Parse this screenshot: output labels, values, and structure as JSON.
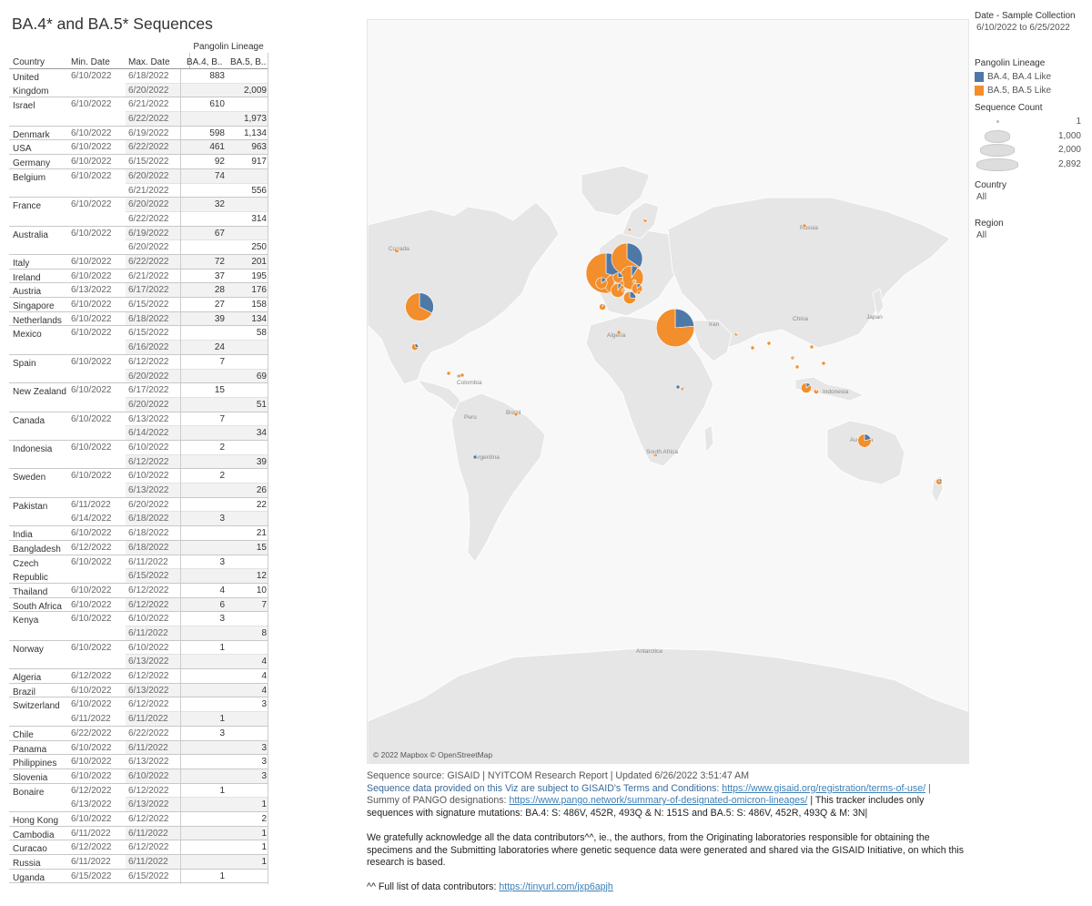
{
  "title": "BA.4* and BA.5* Sequences",
  "table": {
    "lineage_header": "Pangolin Lineage",
    "headers": {
      "country": "Country",
      "min_date": "Min. Date",
      "max_date": "Max. Date",
      "ba4": "BA.4, B..",
      "ba5": "BA.5, B.."
    },
    "groups": [
      {
        "country": "United Kingdom",
        "rows": [
          {
            "min": "6/10/2022",
            "max": "6/18/2022",
            "ba4": "883",
            "ba5": ""
          },
          {
            "min": "",
            "max": "6/20/2022",
            "ba4": "",
            "ba5": "2,009"
          }
        ]
      },
      {
        "country": "Israel",
        "rows": [
          {
            "min": "6/10/2022",
            "max": "6/21/2022",
            "ba4": "610",
            "ba5": ""
          },
          {
            "min": "",
            "max": "6/22/2022",
            "ba4": "",
            "ba5": "1,973"
          }
        ]
      },
      {
        "country": "Denmark",
        "rows": [
          {
            "min": "6/10/2022",
            "max": "6/19/2022",
            "ba4": "598",
            "ba5": "1,134"
          }
        ]
      },
      {
        "country": "USA",
        "rows": [
          {
            "min": "6/10/2022",
            "max": "6/22/2022",
            "ba4": "461",
            "ba5": "963"
          }
        ]
      },
      {
        "country": "Germany",
        "rows": [
          {
            "min": "6/10/2022",
            "max": "6/15/2022",
            "ba4": "92",
            "ba5": "917"
          }
        ]
      },
      {
        "country": "Belgium",
        "rows": [
          {
            "min": "6/10/2022",
            "max": "6/20/2022",
            "ba4": "74",
            "ba5": ""
          },
          {
            "min": "",
            "max": "6/21/2022",
            "ba4": "",
            "ba5": "556"
          }
        ]
      },
      {
        "country": "France",
        "rows": [
          {
            "min": "6/10/2022",
            "max": "6/20/2022",
            "ba4": "32",
            "ba5": ""
          },
          {
            "min": "",
            "max": "6/22/2022",
            "ba4": "",
            "ba5": "314"
          }
        ]
      },
      {
        "country": "Australia",
        "rows": [
          {
            "min": "6/10/2022",
            "max": "6/19/2022",
            "ba4": "67",
            "ba5": ""
          },
          {
            "min": "",
            "max": "6/20/2022",
            "ba4": "",
            "ba5": "250"
          }
        ]
      },
      {
        "country": "Italy",
        "rows": [
          {
            "min": "6/10/2022",
            "max": "6/22/2022",
            "ba4": "72",
            "ba5": "201"
          }
        ]
      },
      {
        "country": "Ireland",
        "rows": [
          {
            "min": "6/10/2022",
            "max": "6/21/2022",
            "ba4": "37",
            "ba5": "195"
          }
        ]
      },
      {
        "country": "Austria",
        "rows": [
          {
            "min": "6/13/2022",
            "max": "6/17/2022",
            "ba4": "28",
            "ba5": "176"
          }
        ]
      },
      {
        "country": "Singapore",
        "rows": [
          {
            "min": "6/10/2022",
            "max": "6/15/2022",
            "ba4": "27",
            "ba5": "158"
          }
        ]
      },
      {
        "country": "Netherlands",
        "rows": [
          {
            "min": "6/10/2022",
            "max": "6/18/2022",
            "ba4": "39",
            "ba5": "134"
          }
        ]
      },
      {
        "country": "Mexico",
        "rows": [
          {
            "min": "6/10/2022",
            "max": "6/15/2022",
            "ba4": "",
            "ba5": "58"
          },
          {
            "min": "",
            "max": "6/16/2022",
            "ba4": "24",
            "ba5": ""
          }
        ]
      },
      {
        "country": "Spain",
        "rows": [
          {
            "min": "6/10/2022",
            "max": "6/12/2022",
            "ba4": "7",
            "ba5": ""
          },
          {
            "min": "",
            "max": "6/20/2022",
            "ba4": "",
            "ba5": "69"
          }
        ]
      },
      {
        "country": "New Zealand",
        "rows": [
          {
            "min": "6/10/2022",
            "max": "6/17/2022",
            "ba4": "15",
            "ba5": ""
          },
          {
            "min": "",
            "max": "6/20/2022",
            "ba4": "",
            "ba5": "51"
          }
        ]
      },
      {
        "country": "Canada",
        "rows": [
          {
            "min": "6/10/2022",
            "max": "6/13/2022",
            "ba4": "7",
            "ba5": ""
          },
          {
            "min": "",
            "max": "6/14/2022",
            "ba4": "",
            "ba5": "34"
          }
        ]
      },
      {
        "country": "Indonesia",
        "rows": [
          {
            "min": "6/10/2022",
            "max": "6/10/2022",
            "ba4": "2",
            "ba5": ""
          },
          {
            "min": "",
            "max": "6/12/2022",
            "ba4": "",
            "ba5": "39"
          }
        ]
      },
      {
        "country": "Sweden",
        "rows": [
          {
            "min": "6/10/2022",
            "max": "6/10/2022",
            "ba4": "2",
            "ba5": ""
          },
          {
            "min": "",
            "max": "6/13/2022",
            "ba4": "",
            "ba5": "26"
          }
        ]
      },
      {
        "country": "Pakistan",
        "rows": [
          {
            "min": "6/11/2022",
            "max": "6/20/2022",
            "ba4": "",
            "ba5": "22"
          },
          {
            "min": "6/14/2022",
            "max": "6/18/2022",
            "ba4": "3",
            "ba5": ""
          }
        ]
      },
      {
        "country": "India",
        "rows": [
          {
            "min": "6/10/2022",
            "max": "6/18/2022",
            "ba4": "",
            "ba5": "21"
          }
        ]
      },
      {
        "country": "Bangladesh",
        "rows": [
          {
            "min": "6/12/2022",
            "max": "6/18/2022",
            "ba4": "",
            "ba5": "15"
          }
        ]
      },
      {
        "country": "Czech Republic",
        "rows": [
          {
            "min": "6/10/2022",
            "max": "6/11/2022",
            "ba4": "3",
            "ba5": ""
          },
          {
            "min": "",
            "max": "6/15/2022",
            "ba4": "",
            "ba5": "12"
          }
        ]
      },
      {
        "country": "Thailand",
        "rows": [
          {
            "min": "6/10/2022",
            "max": "6/12/2022",
            "ba4": "4",
            "ba5": "10"
          }
        ]
      },
      {
        "country": "South Africa",
        "rows": [
          {
            "min": "6/10/2022",
            "max": "6/12/2022",
            "ba4": "6",
            "ba5": "7"
          }
        ]
      },
      {
        "country": "Kenya",
        "rows": [
          {
            "min": "6/10/2022",
            "max": "6/10/2022",
            "ba4": "3",
            "ba5": ""
          },
          {
            "min": "",
            "max": "6/11/2022",
            "ba4": "",
            "ba5": "8"
          }
        ]
      },
      {
        "country": "Norway",
        "rows": [
          {
            "min": "6/10/2022",
            "max": "6/10/2022",
            "ba4": "1",
            "ba5": ""
          },
          {
            "min": "",
            "max": "6/13/2022",
            "ba4": "",
            "ba5": "4"
          }
        ]
      },
      {
        "country": "Algeria",
        "rows": [
          {
            "min": "6/12/2022",
            "max": "6/12/2022",
            "ba4": "",
            "ba5": "4"
          }
        ]
      },
      {
        "country": "Brazil",
        "rows": [
          {
            "min": "6/10/2022",
            "max": "6/13/2022",
            "ba4": "",
            "ba5": "4"
          }
        ]
      },
      {
        "country": "Switzerland",
        "rows": [
          {
            "min": "6/10/2022",
            "max": "6/12/2022",
            "ba4": "",
            "ba5": "3"
          },
          {
            "min": "6/11/2022",
            "max": "6/11/2022",
            "ba4": "1",
            "ba5": ""
          }
        ]
      },
      {
        "country": "Chile",
        "rows": [
          {
            "min": "6/22/2022",
            "max": "6/22/2022",
            "ba4": "3",
            "ba5": ""
          }
        ]
      },
      {
        "country": "Panama",
        "rows": [
          {
            "min": "6/10/2022",
            "max": "6/11/2022",
            "ba4": "",
            "ba5": "3"
          }
        ]
      },
      {
        "country": "Philippines",
        "rows": [
          {
            "min": "6/10/2022",
            "max": "6/13/2022",
            "ba4": "",
            "ba5": "3"
          }
        ]
      },
      {
        "country": "Slovenia",
        "rows": [
          {
            "min": "6/10/2022",
            "max": "6/10/2022",
            "ba4": "",
            "ba5": "3"
          }
        ]
      },
      {
        "country": "Bonaire",
        "rows": [
          {
            "min": "6/12/2022",
            "max": "6/12/2022",
            "ba4": "1",
            "ba5": ""
          },
          {
            "min": "6/13/2022",
            "max": "6/13/2022",
            "ba4": "",
            "ba5": "1"
          }
        ]
      },
      {
        "country": "Hong Kong",
        "rows": [
          {
            "min": "6/10/2022",
            "max": "6/12/2022",
            "ba4": "",
            "ba5": "2"
          }
        ]
      },
      {
        "country": "Cambodia",
        "rows": [
          {
            "min": "6/11/2022",
            "max": "6/11/2022",
            "ba4": "",
            "ba5": "1"
          }
        ]
      },
      {
        "country": "Curacao",
        "rows": [
          {
            "min": "6/12/2022",
            "max": "6/12/2022",
            "ba4": "",
            "ba5": "1"
          }
        ]
      },
      {
        "country": "Russia",
        "rows": [
          {
            "min": "6/11/2022",
            "max": "6/11/2022",
            "ba4": "",
            "ba5": "1"
          }
        ]
      },
      {
        "country": "Uganda",
        "rows": [
          {
            "min": "6/15/2022",
            "max": "6/15/2022",
            "ba4": "1",
            "ba5": ""
          }
        ]
      }
    ]
  },
  "map": {
    "attribution": "© 2022 Mapbox © OpenStreetMap",
    "labels": [
      "Canada",
      "Russia",
      "China",
      "Iran",
      "Algeria",
      "Peru",
      "Brazil",
      "Argentina",
      "Colombia",
      "South Africa",
      "Australia",
      "Antarctica",
      "Japan",
      "Indonesia"
    ],
    "colors": {
      "ba4": "#4e79a7",
      "ba5": "#f28e2b",
      "land": "#e6e6e6",
      "ocean": "#f8f8f8"
    }
  },
  "legend": {
    "date_title": "Date - Sample Collection",
    "date_value": "6/10/2022 to 6/25/2022",
    "lineage_title": "Pangolin Lineage",
    "lineage_items": [
      {
        "label": "BA.4, BA.4 Like",
        "color": "#4e79a7"
      },
      {
        "label": "BA.5, BA.5 Like",
        "color": "#f28e2b"
      }
    ],
    "size_title": "Sequence Count",
    "size_items": [
      "1",
      "1,000",
      "2,000",
      "2,892"
    ],
    "country_title": "Country",
    "country_value": "All",
    "region_title": "Region",
    "region_value": "All"
  },
  "footer": {
    "source_line": "Sequence source: GISAID  | NYITCOM  Research Report | Updated  6/26/2022 3:51:47 AM",
    "terms_text": "Sequence data provided on this Viz are subject to GISAID's Terms and Conditions:",
    "terms_link": "https://www.gisaid.org/registration/terms-of-use/",
    "terms_tail": "|",
    "pango_text": "Summy of PANGO designations:",
    "pango_link": "https://www.pango.network/summary-of-designated-omicron-lineages/",
    "tracker_text": "| This tracker includes only sequences with signature mutations: BA.4: S: 486V, 452R, 493Q & N: 151S and BA.5: S: 486V, 452R, 493Q & M: 3N|",
    "ack_text": "We gratefully acknowledge all the data contributors^^, ie., the authors, from the Originating laboratories responsible for obtaining the specimens and the Submitting laboratories where genetic sequence data were generated and shared via the GISAID Initiative, on which this research is based.",
    "contrib_text": "^^ Full list of data contributors:",
    "contrib_link": "https://tinyurl.com/jxp6apjh"
  }
}
